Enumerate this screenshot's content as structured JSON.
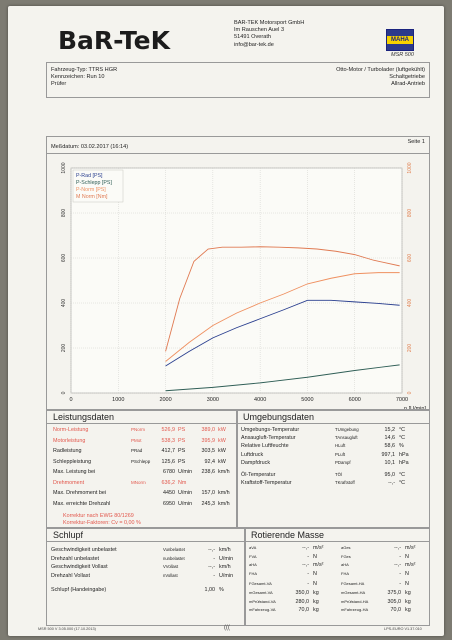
{
  "header": {
    "logo_text": "BaR-TeK",
    "company_lines": [
      "BAR-TEK Motorsport GmbH",
      "Im Rauschen Auel 3",
      "51491 Overath",
      "info@bar-tek.de"
    ],
    "badge_text": "MAHA",
    "device": "MSR 500"
  },
  "vehicle": {
    "left": [
      "Fahrzeug-Typ: TTRS HGR",
      "Kennzeichen:  Run 10",
      "Prüfer"
    ],
    "right": [
      "Otto-Motor / Turbolader (luftgekühlt)",
      "Schaltgetriebe",
      "Allrad-Antrieb"
    ]
  },
  "chart_box": {
    "date": "Meßdatum: 03.02.2017 (16:14)",
    "page": "Seite 1"
  },
  "chart_data": {
    "type": "line",
    "xlabel": "n [U/min]",
    "xlim": [
      0,
      7000
    ],
    "x_ticks": [
      0,
      1000,
      2000,
      3000,
      4000,
      5000,
      6000,
      7000
    ],
    "ylim": [
      0,
      1000
    ],
    "y_ticks": [
      0,
      200,
      400,
      600,
      800,
      1000
    ],
    "legend": [
      "P-Rad [PS]",
      "P-Schlepp [PS]",
      "P-Norm [PS]",
      "M Norm [Nm]"
    ],
    "legend_placement": "top-left",
    "grid": true,
    "series": [
      {
        "name": "P-Rad [PS]",
        "color": "#2a3f8f",
        "x": [
          2000,
          2500,
          3000,
          3500,
          4000,
          4500,
          5000,
          5500,
          6000,
          6500,
          6950
        ],
        "y": [
          120,
          185,
          245,
          290,
          330,
          370,
          412,
          412,
          405,
          398,
          390
        ]
      },
      {
        "name": "P-Schlepp [PS]",
        "color": "#2f5e56",
        "x": [
          2000,
          3000,
          4000,
          5000,
          6000,
          6950
        ],
        "y": [
          10,
          25,
          45,
          70,
          100,
          125
        ]
      },
      {
        "name": "P-Norm [PS]",
        "color": "#ef9060",
        "x": [
          2000,
          2500,
          3000,
          3500,
          4000,
          4500,
          5000,
          5500,
          6000,
          6500,
          6950
        ],
        "y": [
          140,
          225,
          300,
          355,
          400,
          440,
          485,
          510,
          530,
          535,
          535
        ]
      },
      {
        "name": "M Norm [Nm]",
        "color": "#e07a52",
        "x": [
          2000,
          2300,
          2600,
          2900,
          3200,
          3600,
          4000,
          4400,
          4800,
          5200,
          5600,
          6000,
          6400,
          6950
        ],
        "y": [
          185,
          420,
          585,
          640,
          648,
          648,
          650,
          648,
          645,
          640,
          630,
          615,
          590,
          565
        ]
      }
    ]
  },
  "leistung": {
    "title": "Leistungsdaten",
    "rows": [
      {
        "label": "Norm-Leistung",
        "sym": "PNorm",
        "v1": "526,9",
        "u1": "PS",
        "v2": "389,0",
        "u2": "kW",
        "red": true
      },
      {
        "label": "Motorleistung",
        "sym": "PMot",
        "v1": "538,3",
        "u1": "PS",
        "v2": "395,9",
        "u2": "kW",
        "red": true
      },
      {
        "label": "Radleistung",
        "sym": "PRad",
        "v1": "412,7",
        "u1": "PS",
        "v2": "303,5",
        "u2": "kW",
        "red": false
      },
      {
        "label": "Schleppleistung",
        "sym": "PSchlepp",
        "v1": "125,6",
        "u1": "PS",
        "v2": "92,4",
        "u2": "kW",
        "red": false
      },
      {
        "label": "Max. Leistung bei",
        "sym": "",
        "v1": "6780",
        "u1": "U/min",
        "v2": "238,6",
        "u2": "km/h",
        "red": false
      },
      {
        "label": "Drehmoment",
        "sym": "MNorm",
        "v1": "636,2",
        "u1": "Nm",
        "v2": "",
        "u2": "",
        "red": true
      },
      {
        "label": "Max. Drehmoment bei",
        "sym": "",
        "v1": "4450",
        "u1": "U/min",
        "v2": "157,0",
        "u2": "km/h",
        "red": false
      },
      {
        "label": "Max. erreichte Drehzahl",
        "sym": "",
        "v1": "6950",
        "u1": "U/min",
        "v2": "245,3",
        "u2": "km/h",
        "red": false
      }
    ],
    "note1": "Korrektur nach EWG 80/1269",
    "note2": "Korrektur-Faktoren: Cv = 0,00 %"
  },
  "umgebung": {
    "title": "Umgebungsdaten",
    "rows": [
      {
        "label": "Umgebungs-Temperatur",
        "sym": "TUmgebung",
        "val": "15,2",
        "unit": "°C"
      },
      {
        "label": "Ansaugluft-Temperatur",
        "sym": "TAnsaugluft",
        "val": "14,6",
        "unit": "°C"
      },
      {
        "label": "Relative Luftfeuchte",
        "sym": "HLuft",
        "val": "58,6",
        "unit": "%"
      },
      {
        "label": "Luftdruck",
        "sym": "PLuft",
        "val": "997,1",
        "unit": "hPa"
      },
      {
        "label": "Dampfdruck",
        "sym": "PDampf",
        "val": "10,1",
        "unit": "hPa"
      },
      {
        "label": "Öl-Temperatur",
        "sym": "TÖl",
        "val": "95,0",
        "unit": "°C"
      },
      {
        "label": "Kraftstoff-Temperatur",
        "sym": "TKraftstoff",
        "val": "--,-",
        "unit": "°C"
      }
    ]
  },
  "schlupf": {
    "title": "Schlupf",
    "rows": [
      {
        "label": "Geschwindigkeit unbelastet",
        "sym": "Vunbelastet",
        "val": "--,-",
        "unit": "km/h"
      },
      {
        "label": "Drehzahl unbelastet",
        "sym": "nunbelastet",
        "val": "-",
        "unit": "U/min"
      },
      {
        "label": "Geschwindigkeit Vollast",
        "sym": "VVollast",
        "val": "--,-",
        "unit": "km/h"
      },
      {
        "label": "Drehzahl Vollast",
        "sym": "nVollast",
        "val": "-",
        "unit": "U/min"
      },
      {
        "label": "Schlupf (Handeingabe)",
        "sym": "",
        "val": "1,00",
        "unit": "%"
      }
    ]
  },
  "masse": {
    "title": "Rotierende Masse",
    "left": [
      {
        "sym": "aVA",
        "val": "--,-",
        "unit": "m/s²"
      },
      {
        "sym": "FVA",
        "val": "-",
        "unit": "N"
      },
      {
        "sym": "aHA",
        "val": "--,-",
        "unit": "m/s²"
      },
      {
        "sym": "FHA",
        "val": "-",
        "unit": "N"
      },
      {
        "sym": "FGesamt-VA",
        "val": "-",
        "unit": "N"
      },
      {
        "sym": "mGesamt-VA",
        "val": "350,0",
        "unit": "kg"
      },
      {
        "sym": "mPrüfstand-VA",
        "val": "280,0",
        "unit": "kg"
      },
      {
        "sym": "mFahrzeug-VA",
        "val": "70,0",
        "unit": "kg"
      }
    ],
    "right": [
      {
        "sym": "aGes",
        "val": "--,-",
        "unit": "m/s²"
      },
      {
        "sym": "FGes",
        "val": "-",
        "unit": "N"
      },
      {
        "sym": "aHA",
        "val": "--,-",
        "unit": "m/s²"
      },
      {
        "sym": "FHA",
        "val": "-",
        "unit": "N"
      },
      {
        "sym": "FGesamt-HA",
        "val": "-",
        "unit": "N"
      },
      {
        "sym": "mGesamt-HA",
        "val": "375,0",
        "unit": "kg"
      },
      {
        "sym": "mPrüfstand-HA",
        "val": "305,0",
        "unit": "kg"
      },
      {
        "sym": "mFahrzeug-HA",
        "val": "70,0",
        "unit": "kg"
      }
    ]
  },
  "footer": {
    "left": "MSR 500 V 3.05.000 (17.10.2013)",
    "center": "(((",
    "right": "LPS-EURO V1.37.010"
  }
}
